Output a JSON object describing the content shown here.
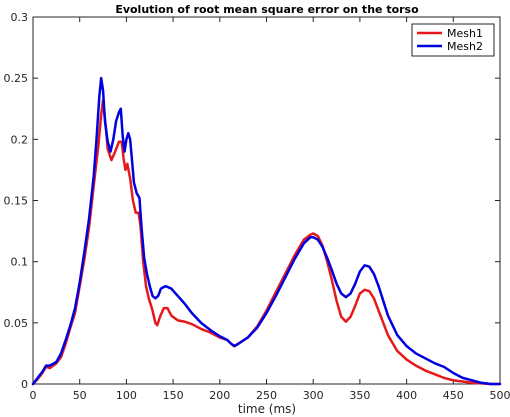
{
  "chart_data": {
    "type": "line",
    "title": "Evolution of root mean square error on the torso",
    "xlabel": "time (ms)",
    "ylabel": "",
    "xlim": [
      0,
      500
    ],
    "ylim": [
      0,
      0.3
    ],
    "xticks": [
      0,
      50,
      100,
      150,
      200,
      250,
      300,
      350,
      400,
      450,
      500
    ],
    "yticks": [
      0,
      0.05,
      0.1,
      0.15,
      0.2,
      0.25,
      0.3
    ],
    "xtick_labels": [
      "0",
      "50",
      "100",
      "150",
      "200",
      "250",
      "300",
      "350",
      "400",
      "450",
      "500"
    ],
    "ytick_labels": [
      "0",
      "0.05",
      "0.1",
      "0.15",
      "0.2",
      "0.25",
      "0.3"
    ],
    "grid": false,
    "legend_position": "top-right",
    "series": [
      {
        "name": "Mesh1",
        "color": "#e41a1c",
        "points": [
          [
            0,
            0
          ],
          [
            5,
            0.004
          ],
          [
            10,
            0.009
          ],
          [
            14,
            0.014
          ],
          [
            18,
            0.013
          ],
          [
            25,
            0.017
          ],
          [
            30,
            0.022
          ],
          [
            35,
            0.033
          ],
          [
            40,
            0.046
          ],
          [
            45,
            0.058
          ],
          [
            50,
            0.08
          ],
          [
            55,
            0.102
          ],
          [
            60,
            0.128
          ],
          [
            65,
            0.162
          ],
          [
            70,
            0.195
          ],
          [
            73,
            0.22
          ],
          [
            75,
            0.232
          ],
          [
            78,
            0.21
          ],
          [
            80,
            0.192
          ],
          [
            84,
            0.183
          ],
          [
            88,
            0.19
          ],
          [
            92,
            0.198
          ],
          [
            95,
            0.198
          ],
          [
            97,
            0.184
          ],
          [
            99,
            0.175
          ],
          [
            101,
            0.18
          ],
          [
            104,
            0.168
          ],
          [
            107,
            0.15
          ],
          [
            110,
            0.14
          ],
          [
            113,
            0.14
          ],
          [
            115,
            0.13
          ],
          [
            118,
            0.1
          ],
          [
            121,
            0.08
          ],
          [
            124,
            0.07
          ],
          [
            128,
            0.06
          ],
          [
            131,
            0.05
          ],
          [
            133,
            0.048
          ],
          [
            136,
            0.055
          ],
          [
            140,
            0.062
          ],
          [
            144,
            0.062
          ],
          [
            148,
            0.056
          ],
          [
            155,
            0.052
          ],
          [
            162,
            0.051
          ],
          [
            170,
            0.049
          ],
          [
            180,
            0.045
          ],
          [
            190,
            0.042
          ],
          [
            200,
            0.038
          ],
          [
            208,
            0.036
          ],
          [
            212,
            0.033
          ],
          [
            215,
            0.031
          ],
          [
            220,
            0.033
          ],
          [
            230,
            0.038
          ],
          [
            240,
            0.047
          ],
          [
            250,
            0.06
          ],
          [
            260,
            0.075
          ],
          [
            270,
            0.09
          ],
          [
            280,
            0.105
          ],
          [
            290,
            0.118
          ],
          [
            297,
            0.122
          ],
          [
            300,
            0.123
          ],
          [
            305,
            0.121
          ],
          [
            310,
            0.113
          ],
          [
            315,
            0.1
          ],
          [
            320,
            0.085
          ],
          [
            325,
            0.068
          ],
          [
            330,
            0.055
          ],
          [
            335,
            0.051
          ],
          [
            340,
            0.055
          ],
          [
            345,
            0.064
          ],
          [
            350,
            0.074
          ],
          [
            355,
            0.077
          ],
          [
            360,
            0.076
          ],
          [
            365,
            0.07
          ],
          [
            370,
            0.06
          ],
          [
            375,
            0.05
          ],
          [
            380,
            0.04
          ],
          [
            390,
            0.027
          ],
          [
            400,
            0.02
          ],
          [
            410,
            0.015
          ],
          [
            420,
            0.011
          ],
          [
            430,
            0.008
          ],
          [
            440,
            0.005
          ],
          [
            450,
            0.003
          ],
          [
            460,
            0.002
          ],
          [
            470,
            0.001
          ],
          [
            480,
            0.0005
          ],
          [
            490,
            0
          ],
          [
            500,
            0
          ]
        ]
      },
      {
        "name": "Mesh2",
        "color": "#0000e0",
        "points": [
          [
            0,
            0
          ],
          [
            5,
            0.005
          ],
          [
            10,
            0.01
          ],
          [
            14,
            0.015
          ],
          [
            18,
            0.015
          ],
          [
            25,
            0.018
          ],
          [
            30,
            0.025
          ],
          [
            35,
            0.036
          ],
          [
            40,
            0.048
          ],
          [
            45,
            0.062
          ],
          [
            50,
            0.083
          ],
          [
            55,
            0.108
          ],
          [
            60,
            0.135
          ],
          [
            65,
            0.17
          ],
          [
            68,
            0.2
          ],
          [
            71,
            0.235
          ],
          [
            73,
            0.25
          ],
          [
            75,
            0.24
          ],
          [
            77,
            0.215
          ],
          [
            80,
            0.198
          ],
          [
            83,
            0.19
          ],
          [
            86,
            0.2
          ],
          [
            89,
            0.215
          ],
          [
            92,
            0.222
          ],
          [
            94,
            0.225
          ],
          [
            96,
            0.203
          ],
          [
            98,
            0.19
          ],
          [
            100,
            0.2
          ],
          [
            102,
            0.205
          ],
          [
            104,
            0.2
          ],
          [
            106,
            0.183
          ],
          [
            108,
            0.165
          ],
          [
            111,
            0.156
          ],
          [
            114,
            0.152
          ],
          [
            116,
            0.13
          ],
          [
            119,
            0.103
          ],
          [
            122,
            0.09
          ],
          [
            125,
            0.08
          ],
          [
            128,
            0.072
          ],
          [
            131,
            0.07
          ],
          [
            134,
            0.072
          ],
          [
            137,
            0.078
          ],
          [
            142,
            0.08
          ],
          [
            148,
            0.078
          ],
          [
            155,
            0.072
          ],
          [
            162,
            0.066
          ],
          [
            170,
            0.058
          ],
          [
            180,
            0.05
          ],
          [
            190,
            0.044
          ],
          [
            200,
            0.039
          ],
          [
            208,
            0.036
          ],
          [
            212,
            0.033
          ],
          [
            216,
            0.031
          ],
          [
            220,
            0.033
          ],
          [
            230,
            0.038
          ],
          [
            240,
            0.046
          ],
          [
            250,
            0.058
          ],
          [
            260,
            0.072
          ],
          [
            270,
            0.087
          ],
          [
            280,
            0.102
          ],
          [
            290,
            0.115
          ],
          [
            297,
            0.12
          ],
          [
            300,
            0.12
          ],
          [
            305,
            0.118
          ],
          [
            310,
            0.112
          ],
          [
            315,
            0.103
          ],
          [
            320,
            0.093
          ],
          [
            325,
            0.082
          ],
          [
            330,
            0.074
          ],
          [
            335,
            0.071
          ],
          [
            340,
            0.074
          ],
          [
            345,
            0.082
          ],
          [
            350,
            0.092
          ],
          [
            355,
            0.097
          ],
          [
            360,
            0.096
          ],
          [
            365,
            0.09
          ],
          [
            370,
            0.08
          ],
          [
            375,
            0.068
          ],
          [
            380,
            0.056
          ],
          [
            390,
            0.04
          ],
          [
            400,
            0.031
          ],
          [
            410,
            0.025
          ],
          [
            420,
            0.021
          ],
          [
            430,
            0.017
          ],
          [
            440,
            0.014
          ],
          [
            450,
            0.009
          ],
          [
            460,
            0.005
          ],
          [
            470,
            0.003
          ],
          [
            480,
            0.001
          ],
          [
            490,
            0
          ],
          [
            500,
            0
          ]
        ]
      }
    ]
  }
}
